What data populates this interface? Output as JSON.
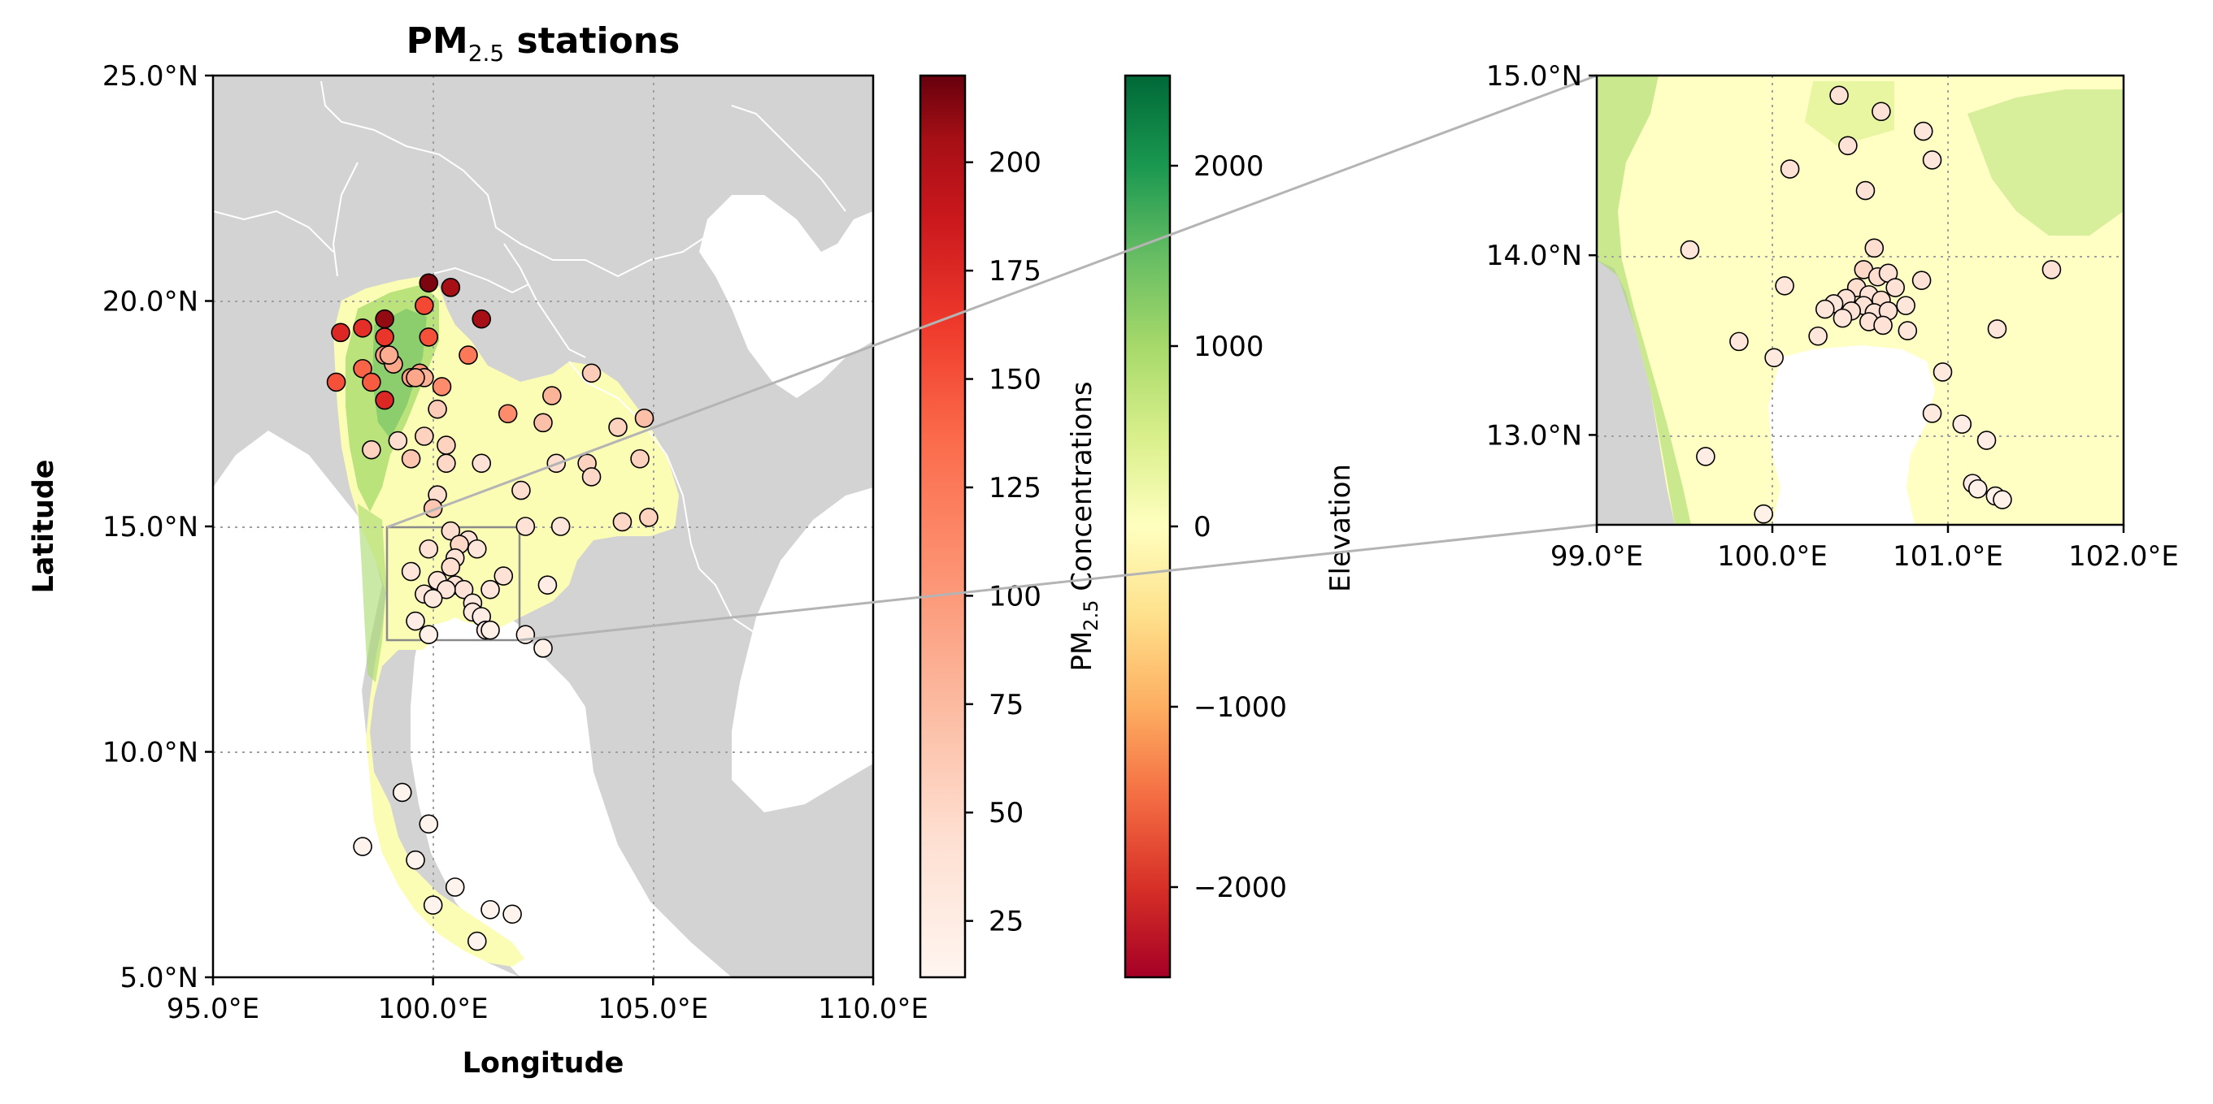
{
  "main_map": {
    "title": "PM",
    "title_sub": "2.5",
    "title_rest": " stations",
    "xlabel": "Longitude",
    "ylabel": "Latitude",
    "lon_range": [
      95,
      110
    ],
    "lat_range": [
      5,
      25
    ],
    "x_ticks": [
      {
        "value": 95,
        "label": "95.0°E"
      },
      {
        "value": 100,
        "label": "100.0°E"
      },
      {
        "value": 105,
        "label": "105.0°E"
      },
      {
        "value": 110,
        "label": "110.0°E"
      }
    ],
    "y_ticks": [
      {
        "value": 5,
        "label": "5.0°N"
      },
      {
        "value": 10,
        "label": "10.0°N"
      },
      {
        "value": 15,
        "label": "15.0°N"
      },
      {
        "value": 20,
        "label": "20.0°N"
      },
      {
        "value": 25,
        "label": "25.0°N"
      }
    ],
    "gridlines": true,
    "inset_box": {
      "lon": [
        98.8,
        101.7
      ],
      "lat": [
        12.5,
        15.0
      ]
    }
  },
  "pm25_colorbar": {
    "label_main": "PM",
    "label_sub": "2.5",
    "label_rest": " Concentrations",
    "range": [
      12,
      220
    ],
    "ticks": [
      "25",
      "50",
      "75",
      "100",
      "125",
      "150",
      "175",
      "200"
    ],
    "tick_values": [
      25,
      50,
      75,
      100,
      125,
      150,
      175,
      200
    ],
    "colormap": "Reds"
  },
  "elevation_colorbar": {
    "label": "Elevation",
    "range": [
      -2500,
      2500
    ],
    "ticks": [
      "−2000",
      "−1000",
      "0",
      "1000",
      "2000"
    ],
    "tick_values": [
      -2000,
      -1000,
      0,
      1000,
      2000
    ],
    "colormap": "RdYlGn"
  },
  "inset_map": {
    "lon_range": [
      99,
      102
    ],
    "lat_range": [
      12.5,
      15
    ],
    "x_ticks": [
      {
        "value": 99,
        "label": "99.0°E"
      },
      {
        "value": 100,
        "label": "100.0°E"
      },
      {
        "value": 101,
        "label": "101.0°E"
      },
      {
        "value": 102,
        "label": "102.0°E"
      }
    ],
    "y_ticks": [
      {
        "value": 13,
        "label": "13.0°N"
      },
      {
        "value": 14,
        "label": "14.0°N"
      },
      {
        "value": 15,
        "label": "15.0°N"
      }
    ]
  },
  "colors": {
    "ocean_land_gray": "#d3d3d3",
    "border": "#ffffff",
    "grid": "#a0a0a0",
    "connector": "#b4b4b4",
    "marker_edge": "#000000"
  },
  "chart_data": {
    "type": "scatter",
    "x_name": "longitude",
    "y_name": "latitude",
    "value_name": "PM2.5",
    "points": [
      {
        "lon": 99.9,
        "lat": 20.4,
        "v": 215
      },
      {
        "lon": 100.4,
        "lat": 20.3,
        "v": 205
      },
      {
        "lon": 98.9,
        "lat": 19.6,
        "v": 210
      },
      {
        "lon": 101.1,
        "lat": 19.6,
        "v": 205
      },
      {
        "lon": 97.9,
        "lat": 19.3,
        "v": 175
      },
      {
        "lon": 98.4,
        "lat": 19.4,
        "v": 170
      },
      {
        "lon": 99.8,
        "lat": 19.9,
        "v": 155
      },
      {
        "lon": 99.9,
        "lat": 19.2,
        "v": 150
      },
      {
        "lon": 98.9,
        "lat": 19.2,
        "v": 165
      },
      {
        "lon": 98.4,
        "lat": 18.5,
        "v": 140
      },
      {
        "lon": 97.8,
        "lat": 18.2,
        "v": 150
      },
      {
        "lon": 98.6,
        "lat": 18.2,
        "v": 145
      },
      {
        "lon": 98.9,
        "lat": 17.8,
        "v": 175
      },
      {
        "lon": 98.9,
        "lat": 18.8,
        "v": 100
      },
      {
        "lon": 99.1,
        "lat": 18.6,
        "v": 90
      },
      {
        "lon": 99.0,
        "lat": 18.8,
        "v": 85
      },
      {
        "lon": 99.5,
        "lat": 18.3,
        "v": 95
      },
      {
        "lon": 99.7,
        "lat": 18.4,
        "v": 100
      },
      {
        "lon": 99.8,
        "lat": 18.3,
        "v": 80
      },
      {
        "lon": 100.2,
        "lat": 18.1,
        "v": 110
      },
      {
        "lon": 99.6,
        "lat": 18.3,
        "v": 90
      },
      {
        "lon": 100.8,
        "lat": 18.8,
        "v": 125
      },
      {
        "lon": 100.1,
        "lat": 17.6,
        "v": 60
      },
      {
        "lon": 101.7,
        "lat": 17.5,
        "v": 110
      },
      {
        "lon": 102.7,
        "lat": 17.9,
        "v": 80
      },
      {
        "lon": 103.6,
        "lat": 18.4,
        "v": 60
      },
      {
        "lon": 102.5,
        "lat": 17.3,
        "v": 70
      },
      {
        "lon": 104.8,
        "lat": 17.4,
        "v": 70
      },
      {
        "lon": 104.2,
        "lat": 17.2,
        "v": 55
      },
      {
        "lon": 98.6,
        "lat": 16.7,
        "v": 55
      },
      {
        "lon": 99.2,
        "lat": 16.9,
        "v": 45
      },
      {
        "lon": 99.8,
        "lat": 17.0,
        "v": 55
      },
      {
        "lon": 100.3,
        "lat": 16.8,
        "v": 55
      },
      {
        "lon": 99.5,
        "lat": 16.5,
        "v": 65
      },
      {
        "lon": 100.3,
        "lat": 16.4,
        "v": 50
      },
      {
        "lon": 101.1,
        "lat": 16.4,
        "v": 40
      },
      {
        "lon": 102.8,
        "lat": 16.4,
        "v": 45
      },
      {
        "lon": 103.5,
        "lat": 16.4,
        "v": 55
      },
      {
        "lon": 103.6,
        "lat": 16.1,
        "v": 50
      },
      {
        "lon": 104.7,
        "lat": 16.5,
        "v": 55
      },
      {
        "lon": 102.0,
        "lat": 15.8,
        "v": 45
      },
      {
        "lon": 100.1,
        "lat": 15.7,
        "v": 45
      },
      {
        "lon": 100.0,
        "lat": 15.4,
        "v": 65
      },
      {
        "lon": 102.1,
        "lat": 15.0,
        "v": 40
      },
      {
        "lon": 102.9,
        "lat": 15.0,
        "v": 35
      },
      {
        "lon": 104.3,
        "lat": 15.1,
        "v": 50
      },
      {
        "lon": 104.9,
        "lat": 15.2,
        "v": 55
      },
      {
        "lon": 100.4,
        "lat": 14.9,
        "v": 45
      },
      {
        "lon": 100.8,
        "lat": 14.7,
        "v": 40
      },
      {
        "lon": 100.6,
        "lat": 14.6,
        "v": 50
      },
      {
        "lon": 99.9,
        "lat": 14.5,
        "v": 40
      },
      {
        "lon": 101.0,
        "lat": 14.5,
        "v": 35
      },
      {
        "lon": 99.5,
        "lat": 14.0,
        "v": 35
      },
      {
        "lon": 100.5,
        "lat": 14.3,
        "v": 40
      },
      {
        "lon": 100.4,
        "lat": 14.1,
        "v": 45
      },
      {
        "lon": 101.6,
        "lat": 13.9,
        "v": 40
      },
      {
        "lon": 100.1,
        "lat": 13.8,
        "v": 35
      },
      {
        "lon": 100.5,
        "lat": 13.7,
        "v": 40
      },
      {
        "lon": 100.7,
        "lat": 13.6,
        "v": 40
      },
      {
        "lon": 100.3,
        "lat": 13.6,
        "v": 35
      },
      {
        "lon": 101.3,
        "lat": 13.6,
        "v": 35
      },
      {
        "lon": 99.8,
        "lat": 13.5,
        "v": 35
      },
      {
        "lon": 100.0,
        "lat": 13.4,
        "v": 30
      },
      {
        "lon": 100.9,
        "lat": 13.3,
        "v": 30
      },
      {
        "lon": 100.9,
        "lat": 13.1,
        "v": 30
      },
      {
        "lon": 101.1,
        "lat": 13.0,
        "v": 25
      },
      {
        "lon": 101.2,
        "lat": 12.7,
        "v": 25
      },
      {
        "lon": 101.3,
        "lat": 12.7,
        "v": 20
      },
      {
        "lon": 99.6,
        "lat": 12.9,
        "v": 25
      },
      {
        "lon": 99.9,
        "lat": 12.6,
        "v": 20
      },
      {
        "lon": 102.1,
        "lat": 12.6,
        "v": 25
      },
      {
        "lon": 102.5,
        "lat": 12.3,
        "v": 20
      },
      {
        "lon": 102.6,
        "lat": 13.7,
        "v": 25
      },
      {
        "lon": 99.3,
        "lat": 9.1,
        "v": 15
      },
      {
        "lon": 99.9,
        "lat": 8.4,
        "v": 15
      },
      {
        "lon": 98.4,
        "lat": 7.9,
        "v": 15
      },
      {
        "lon": 99.6,
        "lat": 7.6,
        "v": 15
      },
      {
        "lon": 100.5,
        "lat": 7.0,
        "v": 15
      },
      {
        "lon": 100.0,
        "lat": 6.6,
        "v": 15
      },
      {
        "lon": 101.3,
        "lat": 6.5,
        "v": 15
      },
      {
        "lon": 101.8,
        "lat": 6.4,
        "v": 15
      },
      {
        "lon": 101.0,
        "lat": 5.8,
        "v": 15
      }
    ],
    "inset_points": [
      {
        "lon": 100.38,
        "lat": 14.89,
        "v": 40
      },
      {
        "lon": 100.62,
        "lat": 14.8,
        "v": 40
      },
      {
        "lon": 100.86,
        "lat": 14.69,
        "v": 35
      },
      {
        "lon": 100.43,
        "lat": 14.61,
        "v": 40
      },
      {
        "lon": 100.91,
        "lat": 14.53,
        "v": 35
      },
      {
        "lon": 100.1,
        "lat": 14.48,
        "v": 40
      },
      {
        "lon": 100.53,
        "lat": 14.36,
        "v": 40
      },
      {
        "lon": 99.53,
        "lat": 14.03,
        "v": 35
      },
      {
        "lon": 100.58,
        "lat": 14.04,
        "v": 45
      },
      {
        "lon": 101.59,
        "lat": 13.92,
        "v": 40
      },
      {
        "lon": 100.52,
        "lat": 13.92,
        "v": 50
      },
      {
        "lon": 100.6,
        "lat": 13.88,
        "v": 45
      },
      {
        "lon": 100.66,
        "lat": 13.9,
        "v": 40
      },
      {
        "lon": 100.07,
        "lat": 13.83,
        "v": 35
      },
      {
        "lon": 100.85,
        "lat": 13.86,
        "v": 40
      },
      {
        "lon": 100.48,
        "lat": 13.82,
        "v": 45
      },
      {
        "lon": 100.55,
        "lat": 13.78,
        "v": 40
      },
      {
        "lon": 100.7,
        "lat": 13.82,
        "v": 40
      },
      {
        "lon": 100.42,
        "lat": 13.76,
        "v": 40
      },
      {
        "lon": 100.62,
        "lat": 13.75,
        "v": 45
      },
      {
        "lon": 100.35,
        "lat": 13.73,
        "v": 35
      },
      {
        "lon": 100.52,
        "lat": 13.72,
        "v": 40
      },
      {
        "lon": 100.76,
        "lat": 13.72,
        "v": 35
      },
      {
        "lon": 100.45,
        "lat": 13.69,
        "v": 40
      },
      {
        "lon": 100.58,
        "lat": 13.68,
        "v": 40
      },
      {
        "lon": 100.66,
        "lat": 13.69,
        "v": 40
      },
      {
        "lon": 100.3,
        "lat": 13.7,
        "v": 35
      },
      {
        "lon": 100.4,
        "lat": 13.65,
        "v": 35
      },
      {
        "lon": 100.55,
        "lat": 13.63,
        "v": 40
      },
      {
        "lon": 100.63,
        "lat": 13.61,
        "v": 40
      },
      {
        "lon": 100.77,
        "lat": 13.58,
        "v": 35
      },
      {
        "lon": 100.26,
        "lat": 13.55,
        "v": 35
      },
      {
        "lon": 101.28,
        "lat": 13.59,
        "v": 35
      },
      {
        "lon": 99.81,
        "lat": 13.52,
        "v": 35
      },
      {
        "lon": 100.01,
        "lat": 13.43,
        "v": 30
      },
      {
        "lon": 100.97,
        "lat": 13.35,
        "v": 30
      },
      {
        "lon": 100.91,
        "lat": 13.12,
        "v": 30
      },
      {
        "lon": 101.08,
        "lat": 13.06,
        "v": 25
      },
      {
        "lon": 101.22,
        "lat": 12.97,
        "v": 25
      },
      {
        "lon": 99.62,
        "lat": 12.88,
        "v": 25
      },
      {
        "lon": 101.14,
        "lat": 12.73,
        "v": 25
      },
      {
        "lon": 101.17,
        "lat": 12.7,
        "v": 20
      },
      {
        "lon": 101.27,
        "lat": 12.66,
        "v": 20
      },
      {
        "lon": 101.31,
        "lat": 12.64,
        "v": 20
      },
      {
        "lon": 99.95,
        "lat": 12.56,
        "v": 20
      }
    ]
  }
}
